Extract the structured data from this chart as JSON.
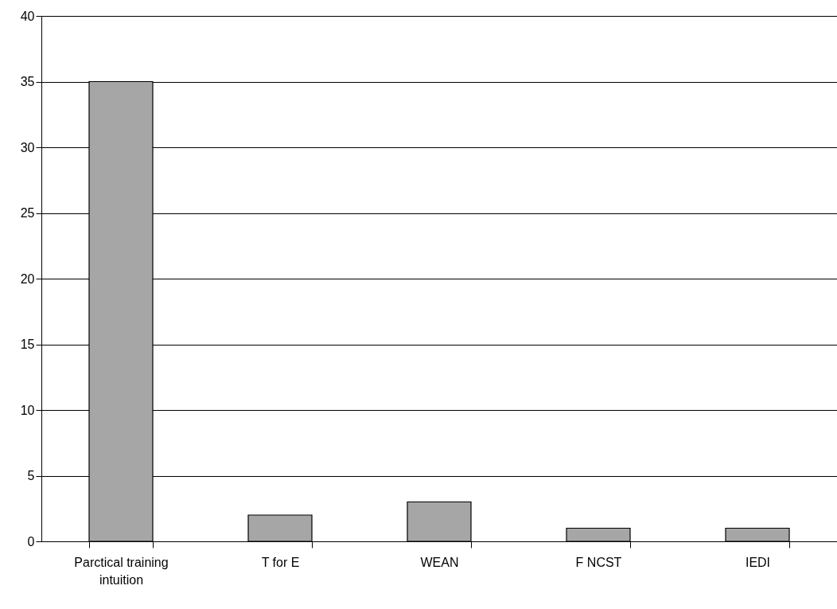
{
  "chart_data": {
    "type": "bar",
    "categories": [
      "Parctical training intuition",
      "T for E",
      "WEAN",
      "F NCST",
      "IEDI"
    ],
    "values": [
      35,
      2,
      3,
      1,
      1
    ],
    "color": "#a6a6a6",
    "ylim": [
      0,
      40
    ],
    "yticks": [
      0,
      5,
      10,
      15,
      20,
      25,
      30,
      35,
      40
    ],
    "grid": "y"
  }
}
